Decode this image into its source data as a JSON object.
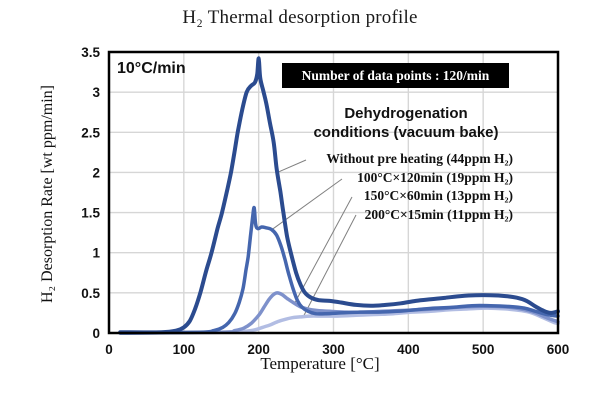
{
  "title": "H₂ Thermal desorption profile",
  "annotations": {
    "rate_label": "10°C/min",
    "data_points_box": "Number of data points : 120/min",
    "legend_title_line1": "Dehydrogenation",
    "legend_title_line2": "conditions (vacuum bake)"
  },
  "colors": {
    "grid": "#d6d6d6",
    "border": "#000000",
    "leader_line": "#808080",
    "box_bg": "#000000",
    "box_text": "#ffffff"
  },
  "chart_data": {
    "type": "line",
    "title": "H₂ Thermal desorption profile",
    "xlabel": "Temperature [°C]",
    "ylabel": "H₂ Desorption Rate [wt ppm/min]",
    "xlim": [
      0,
      600
    ],
    "ylim": [
      0,
      3.5
    ],
    "x_ticks": [
      "0",
      "100",
      "200",
      "300",
      "400",
      "500",
      "600"
    ],
    "y_ticks": [
      "0",
      "0.5",
      "1",
      "1.5",
      "2",
      "2.5",
      "3",
      "3.5"
    ],
    "grid": true,
    "legend_position": "inside-right",
    "series": [
      {
        "id": "without-pre-heating",
        "name": "Without pre heating (44ppm H₂)",
        "color": "#2b4b8f",
        "width": 4,
        "callout_anchor": [
          225,
          2.0
        ],
        "points": [
          [
            15,
            0.01
          ],
          [
            70,
            0.01
          ],
          [
            90,
            0.03
          ],
          [
            100,
            0.07
          ],
          [
            108,
            0.15
          ],
          [
            115,
            0.3
          ],
          [
            122,
            0.5
          ],
          [
            130,
            0.78
          ],
          [
            137,
            1.0
          ],
          [
            145,
            1.3
          ],
          [
            151,
            1.5
          ],
          [
            158,
            1.78
          ],
          [
            163,
            2.0
          ],
          [
            168,
            2.27
          ],
          [
            172,
            2.5
          ],
          [
            178,
            2.78
          ],
          [
            184,
            3.0
          ],
          [
            190,
            3.08
          ],
          [
            195,
            3.12
          ],
          [
            198,
            3.22
          ],
          [
            200,
            3.42
          ],
          [
            202,
            3.18
          ],
          [
            206,
            3.02
          ],
          [
            210,
            2.87
          ],
          [
            215,
            2.62
          ],
          [
            220,
            2.38
          ],
          [
            224,
            2.05
          ],
          [
            229,
            1.76
          ],
          [
            233,
            1.5
          ],
          [
            238,
            1.2
          ],
          [
            243,
            1.0
          ],
          [
            250,
            0.75
          ],
          [
            256,
            0.6
          ],
          [
            262,
            0.5
          ],
          [
            270,
            0.44
          ],
          [
            280,
            0.41
          ],
          [
            295,
            0.4
          ],
          [
            310,
            0.38
          ],
          [
            330,
            0.35
          ],
          [
            350,
            0.34
          ],
          [
            370,
            0.35
          ],
          [
            390,
            0.37
          ],
          [
            410,
            0.4
          ],
          [
            430,
            0.42
          ],
          [
            450,
            0.44
          ],
          [
            470,
            0.46
          ],
          [
            490,
            0.47
          ],
          [
            510,
            0.47
          ],
          [
            530,
            0.46
          ],
          [
            545,
            0.44
          ],
          [
            558,
            0.4
          ],
          [
            570,
            0.33
          ],
          [
            580,
            0.28
          ],
          [
            590,
            0.25
          ],
          [
            600,
            0.27
          ]
        ]
      },
      {
        "id": "bake-100c-120min",
        "name": "100°C×120min (19ppm H₂)",
        "color": "#4566ae",
        "width": 3.5,
        "callout_anchor": [
          218,
          1.29
        ],
        "points": [
          [
            15,
            0
          ],
          [
            120,
            0.01
          ],
          [
            140,
            0.03
          ],
          [
            152,
            0.07
          ],
          [
            160,
            0.13
          ],
          [
            168,
            0.24
          ],
          [
            174,
            0.38
          ],
          [
            179,
            0.55
          ],
          [
            183,
            0.78
          ],
          [
            186,
            0.95
          ],
          [
            189,
            1.2
          ],
          [
            192,
            1.45
          ],
          [
            194,
            1.56
          ],
          [
            196,
            1.35
          ],
          [
            199,
            1.3
          ],
          [
            204,
            1.32
          ],
          [
            210,
            1.31
          ],
          [
            217,
            1.29
          ],
          [
            224,
            1.22
          ],
          [
            230,
            1.08
          ],
          [
            235,
            0.92
          ],
          [
            240,
            0.74
          ],
          [
            246,
            0.55
          ],
          [
            252,
            0.4
          ],
          [
            258,
            0.32
          ],
          [
            266,
            0.27
          ],
          [
            276,
            0.24
          ],
          [
            290,
            0.24
          ],
          [
            310,
            0.25
          ],
          [
            335,
            0.26
          ],
          [
            360,
            0.26
          ],
          [
            385,
            0.27
          ],
          [
            410,
            0.29
          ],
          [
            435,
            0.31
          ],
          [
            460,
            0.32
          ],
          [
            485,
            0.34
          ],
          [
            510,
            0.34
          ],
          [
            535,
            0.33
          ],
          [
            555,
            0.31
          ],
          [
            570,
            0.27
          ],
          [
            585,
            0.23
          ],
          [
            600,
            0.21
          ]
        ]
      },
      {
        "id": "bake-150c-60min",
        "name": "150°C×60min (13ppm H₂)",
        "color": "#7e91cb",
        "width": 3.5,
        "callout_anchor": [
          248,
          0.37
        ],
        "points": [
          [
            15,
            0
          ],
          [
            150,
            0.01
          ],
          [
            168,
            0.03
          ],
          [
            180,
            0.06
          ],
          [
            190,
            0.12
          ],
          [
            200,
            0.22
          ],
          [
            207,
            0.32
          ],
          [
            214,
            0.42
          ],
          [
            220,
            0.48
          ],
          [
            225,
            0.5
          ],
          [
            231,
            0.48
          ],
          [
            238,
            0.43
          ],
          [
            246,
            0.38
          ],
          [
            255,
            0.33
          ],
          [
            265,
            0.3
          ],
          [
            278,
            0.28
          ],
          [
            295,
            0.27
          ],
          [
            315,
            0.26
          ],
          [
            340,
            0.26
          ],
          [
            365,
            0.27
          ],
          [
            390,
            0.28
          ],
          [
            415,
            0.29
          ],
          [
            440,
            0.3
          ],
          [
            465,
            0.32
          ],
          [
            490,
            0.33
          ],
          [
            515,
            0.33
          ],
          [
            535,
            0.32
          ],
          [
            555,
            0.29
          ],
          [
            570,
            0.25
          ],
          [
            585,
            0.19
          ],
          [
            600,
            0.14
          ]
        ]
      },
      {
        "id": "bake-200c-15min",
        "name": "200°C×15min (11ppm H₂)",
        "color": "#b2bde3",
        "width": 3.5,
        "callout_anchor": [
          260,
          0.21
        ],
        "points": [
          [
            15,
            0
          ],
          [
            160,
            0.01
          ],
          [
            180,
            0.02
          ],
          [
            195,
            0.04
          ],
          [
            205,
            0.07
          ],
          [
            215,
            0.1
          ],
          [
            225,
            0.14
          ],
          [
            235,
            0.17
          ],
          [
            245,
            0.19
          ],
          [
            255,
            0.2
          ],
          [
            268,
            0.21
          ],
          [
            285,
            0.21
          ],
          [
            305,
            0.21
          ],
          [
            330,
            0.22
          ],
          [
            355,
            0.23
          ],
          [
            380,
            0.24
          ],
          [
            405,
            0.26
          ],
          [
            430,
            0.27
          ],
          [
            455,
            0.29
          ],
          [
            480,
            0.3
          ],
          [
            505,
            0.31
          ],
          [
            530,
            0.3
          ],
          [
            550,
            0.28
          ],
          [
            565,
            0.25
          ],
          [
            580,
            0.19
          ],
          [
            595,
            0.13
          ],
          [
            600,
            0.12
          ]
        ]
      }
    ]
  }
}
